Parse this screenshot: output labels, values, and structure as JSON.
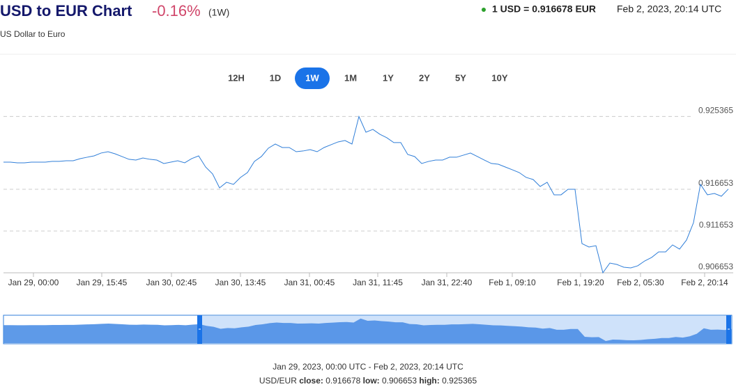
{
  "header": {
    "title": "USD to EUR Chart",
    "change": "-0.16%",
    "period": "(1W)",
    "subtitle": "US Dollar to Euro",
    "rate": "1 USD = 0.916678 EUR",
    "timestamp": "Feb 2, 2023, 20:14 UTC"
  },
  "ranges": {
    "buttons": [
      "12H",
      "1D",
      "1W",
      "1M",
      "1Y",
      "2Y",
      "5Y",
      "10Y"
    ],
    "selected": "1W"
  },
  "chart_data": {
    "type": "line",
    "color": "#2f7ed8",
    "grid": true,
    "values": [
      0.9199,
      0.9199,
      0.91982,
      0.91982,
      0.9199,
      0.9199,
      0.9199,
      0.91999,
      0.91999,
      0.92007,
      0.92007,
      0.92032,
      0.92049,
      0.92065,
      0.92099,
      0.92115,
      0.9209,
      0.92057,
      0.92024,
      0.92015,
      0.9204,
      0.92024,
      0.92015,
      0.91974,
      0.9199,
      0.92007,
      0.91982,
      0.92032,
      0.92065,
      0.91932,
      0.91849,
      0.91682,
      0.91749,
      0.91724,
      0.91807,
      0.91865,
      0.91999,
      0.92057,
      0.92157,
      0.92207,
      0.92165,
      0.92165,
      0.92115,
      0.92124,
      0.9214,
      0.92115,
      0.92165,
      0.92199,
      0.92232,
      0.92249,
      0.92207,
      0.925365,
      0.92349,
      0.92382,
      0.92324,
      0.92282,
      0.92224,
      0.92224,
      0.92082,
      0.92057,
      0.91974,
      0.91999,
      0.92015,
      0.92015,
      0.92049,
      0.92049,
      0.92074,
      0.92099,
      0.92057,
      0.92015,
      0.91974,
      0.91965,
      0.91932,
      0.91899,
      0.91865,
      0.91807,
      0.91782,
      0.91699,
      0.91749,
      0.91599,
      0.91599,
      0.91665,
      0.91665,
      0.91015,
      0.90974,
      0.9099,
      0.906653,
      0.90782,
      0.90765,
      0.90732,
      0.90724,
      0.90749,
      0.90807,
      0.90849,
      0.90915,
      0.90915,
      0.90999,
      0.90949,
      0.91057,
      0.91265,
      0.91724,
      0.91599,
      0.91615,
      0.91582,
      0.916678
    ],
    "xlim": [
      0,
      104
    ],
    "xticks": [
      {
        "value": 4.3,
        "label": "Jan 29, 00:00"
      },
      {
        "value": 14.1,
        "label": "Jan 29, 15:45"
      },
      {
        "value": 24.1,
        "label": "Jan 30, 02:45"
      },
      {
        "value": 34,
        "label": "Jan 30, 13:45"
      },
      {
        "value": 43.9,
        "label": "Jan 31, 00:45"
      },
      {
        "value": 53.7,
        "label": "Jan 31, 11:45"
      },
      {
        "value": 63.6,
        "label": "Jan 31, 22:40"
      },
      {
        "value": 73,
        "label": "Feb 1, 09:10"
      },
      {
        "value": 82.8,
        "label": "Feb 1, 19:20"
      },
      {
        "value": 91.4,
        "label": "Feb 2, 05:30"
      },
      {
        "value": 100.6,
        "label": "Feb 2, 20:14"
      }
    ],
    "ylim": [
      0.906653,
      0.9264
    ],
    "yticks": [
      0.925365,
      0.916653,
      0.911653,
      0.906653
    ]
  },
  "footer": {
    "range": "Jan 29, 2023, 00:00 UTC - Feb 2, 2023, 20:14 UTC",
    "pair": "USD/EUR",
    "close_label": "close:",
    "close": 0.916678,
    "low_label": "low:",
    "low": 0.906653,
    "high_label": "high:",
    "high": 0.925365
  }
}
